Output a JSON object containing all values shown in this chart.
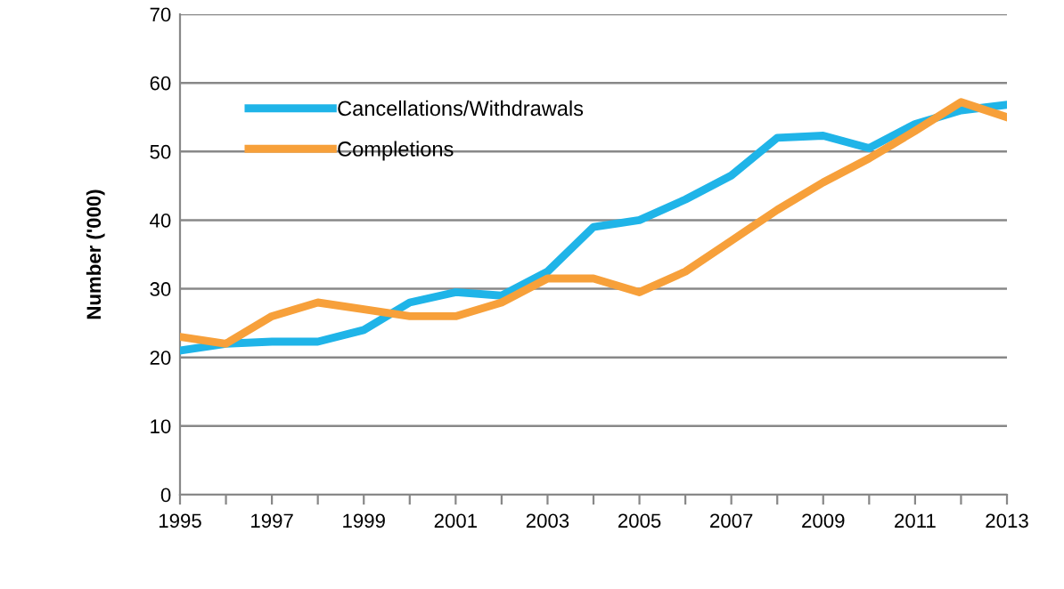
{
  "chart_data": {
    "type": "line",
    "ylabel": "Number ('000)",
    "x": [
      1995,
      1996,
      1997,
      1998,
      1999,
      2000,
      2001,
      2002,
      2003,
      2004,
      2005,
      2006,
      2007,
      2008,
      2009,
      2010,
      2011,
      2012,
      2013
    ],
    "series": [
      {
        "name": "Cancellations/Withdrawals",
        "color": "#1fb4e8",
        "values": [
          21,
          22,
          22.3,
          22.3,
          24,
          28,
          29.5,
          29,
          32.5,
          39,
          40,
          43,
          46.5,
          52,
          52.3,
          50.5,
          54,
          56,
          56.8
        ]
      },
      {
        "name": "Completions",
        "color": "#f7a03a",
        "values": [
          23,
          22,
          26,
          28,
          27,
          26,
          26,
          28,
          31.5,
          31.5,
          29.5,
          32.5,
          37,
          41.5,
          45.5,
          49,
          53,
          57.2,
          55
        ]
      }
    ],
    "xlim": [
      1995,
      2013
    ],
    "xticks": [
      1995,
      {
        "value": 1996,
        "label": null
      },
      1997,
      {
        "value": 1998,
        "label": null
      },
      1999,
      {
        "value": 2000,
        "label": null
      },
      2001,
      {
        "value": 2002,
        "label": null
      },
      2003,
      {
        "value": 2004,
        "label": null
      },
      2005,
      {
        "value": 2006,
        "label": null
      },
      2007,
      {
        "value": 2008,
        "label": null
      },
      2009,
      {
        "value": 2010,
        "label": null
      },
      2011,
      {
        "value": 2012,
        "label": null
      },
      2013
    ],
    "ylim": [
      0,
      70
    ],
    "yticks": [
      0,
      10,
      20,
      30,
      40,
      50,
      60,
      70
    ],
    "grid": "y",
    "legend": "top left",
    "marker": "none",
    "line_style": "solid"
  }
}
